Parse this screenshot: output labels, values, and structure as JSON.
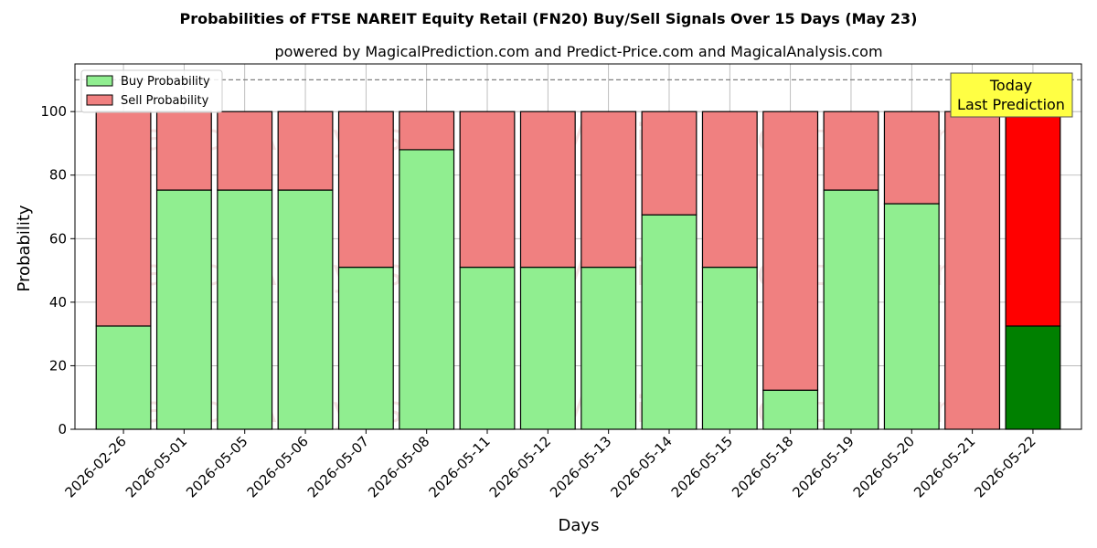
{
  "chart_data": {
    "type": "bar",
    "stacked": true,
    "title": "Probabilities of FTSE NAREIT Equity Retail (FN20) Buy/Sell Signals Over 15 Days (May 23)",
    "subtitle": "powered by MagicalPrediction.com and Predict-Price.com and MagicalAnalysis.com",
    "xlabel": "Days",
    "ylabel": "Probability",
    "ylim": [
      0,
      115
    ],
    "yticks": [
      0,
      20,
      40,
      60,
      80,
      100
    ],
    "reference_line": 110,
    "grid": true,
    "legend_position": "top-left",
    "categories": [
      "2026-02-26",
      "2026-05-01",
      "2026-05-05",
      "2026-05-06",
      "2026-05-07",
      "2026-05-08",
      "2026-05-11",
      "2026-05-12",
      "2026-05-13",
      "2026-05-14",
      "2026-05-15",
      "2026-05-18",
      "2026-05-19",
      "2026-05-20",
      "2026-05-21",
      "2026-05-22"
    ],
    "series": [
      {
        "name": "Buy Probability",
        "color": "#90ee90",
        "values": [
          32.5,
          75.3,
          75.3,
          75.3,
          51.0,
          88.0,
          51.0,
          51.0,
          51.0,
          67.5,
          51.0,
          12.3,
          75.3,
          71.0,
          0,
          32.5
        ]
      },
      {
        "name": "Sell Probability",
        "color": "#f08080",
        "values": [
          67.5,
          24.7,
          24.7,
          24.7,
          49.0,
          12.0,
          49.0,
          49.0,
          49.0,
          32.5,
          49.0,
          87.7,
          24.7,
          29.0,
          100,
          67.5
        ]
      }
    ],
    "highlight": {
      "index": 15,
      "buy_color": "#008000",
      "sell_color": "#ff0000"
    },
    "annotation": {
      "line1": "Today",
      "line2": "Last Prediction",
      "background": "#ffff44"
    },
    "watermarks": [
      "MagicalAnalysis.com",
      "MagicalPrediction.com"
    ]
  }
}
